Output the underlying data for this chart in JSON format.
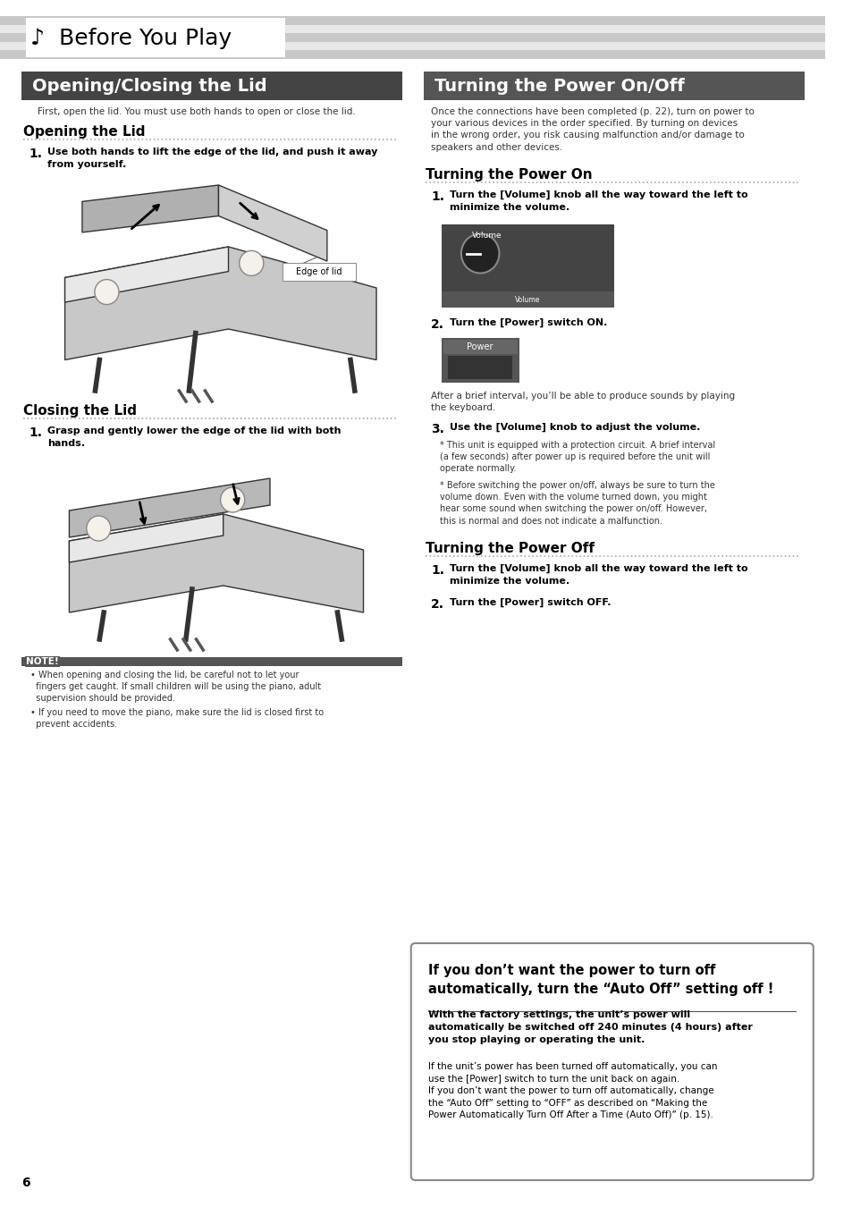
{
  "page_bg": "#ffffff",
  "header_bg": "#cccccc",
  "header_text": "Before You Play",
  "header_music_note": "♪",
  "left_section_title": "Opening/Closing the Lid",
  "left_section_title_bg": "#444444",
  "left_section_title_color": "#ffffff",
  "right_section_title": "Turning the Power On/Off",
  "right_section_title_bg": "#555555",
  "right_section_title_color": "#ffffff",
  "opening_lid_subtitle": "Opening the Lid",
  "closing_lid_subtitle": "Closing the Lid",
  "turning_on_subtitle": "Turning the Power On",
  "turning_off_subtitle": "Turning the Power Off",
  "left_intro": "First, open the lid. You must use both hands to open or close the lid.",
  "right_intro": "Once the connections have been completed (p. 22), turn on power to\nyour various devices in the order specified. By turning on devices\nin the wrong order, you risk causing malfunction and/or damage to\nspeakers and other devices.",
  "opening_step1": "Use both hands to lift the edge of the lid, and push it away\nfrom yourself.",
  "closing_step1": "Grasp and gently lower the edge of the lid with both\nhands.",
  "power_on_step1": "Turn the [Volume] knob all the way toward the left to\nminimize the volume.",
  "power_on_step2": "Turn the [Power] switch ON.",
  "power_on_step2_note": "After a brief interval, you’ll be able to produce sounds by playing\nthe keyboard.",
  "power_on_step3": "Use the [Volume] knob to adjust the volume.",
  "power_on_step3_bullet1": "This unit is equipped with a protection circuit. A brief interval\n(a few seconds) after power up is required before the unit will\noperate normally.",
  "power_on_step3_bullet2": "Before switching the power on/off, always be sure to turn the\nvolume down. Even with the volume turned down, you might\nhear some sound when switching the power on/off. However,\nthis is normal and does not indicate a malfunction.",
  "power_off_step1": "Turn the [Volume] knob all the way toward the left to\nminimize the volume.",
  "power_off_step2": "Turn the [Power] switch OFF.",
  "edge_of_lid_label": "Edge of lid",
  "note_label": "NOTE!",
  "note_bullet1": "When opening and closing the lid, be careful not to let your\nfingers get caught. If small children will be using the piano, adult\nsupervision should be provided.",
  "note_bullet2": "If you need to move the piano, make sure the lid is closed first to\nprevent accidents.",
  "auto_off_title": "If you don’t want the power to turn off\nautomatically, turn the “Auto Off” setting off !",
  "auto_off_bold": "With the factory settings, the unit’s power will\nautomatically be switched off 240 minutes (4 hours) after\nyou stop playing or operating the unit.",
  "auto_off_body": "If the unit’s power has been turned off automatically, you can\nuse the [Power] switch to turn the unit back on again.\nIf you don’t want the power to turn off automatically, change\nthe “Auto Off” setting to “OFF” as described on “Making the\nPower Automatically Turn Off After a Time (Auto Off)” (p. 15).",
  "page_number": "6",
  "dot_color": "#aaaaaa",
  "accent_color": "#333333"
}
